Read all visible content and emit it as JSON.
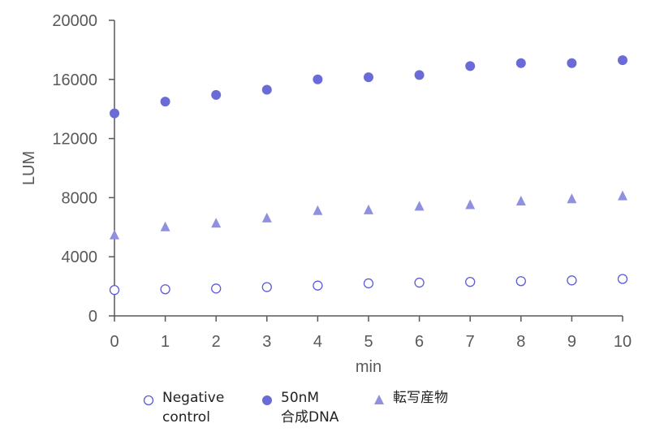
{
  "chart_data": {
    "type": "scatter",
    "title": "",
    "xlabel": "min",
    "ylabel": "LUM",
    "xlim": [
      0,
      10
    ],
    "ylim": [
      0,
      20000
    ],
    "xticks": [
      0,
      1,
      2,
      3,
      4,
      5,
      6,
      7,
      8,
      9,
      10
    ],
    "yticks": [
      0,
      4000,
      8000,
      12000,
      16000,
      20000
    ],
    "grid": false,
    "legend_position": "bottom",
    "x": [
      0,
      1,
      2,
      3,
      4,
      5,
      6,
      7,
      8,
      9,
      10
    ],
    "series": [
      {
        "name": "Negative\ncontrol",
        "marker": "open-circle",
        "color": "#5b5bd6",
        "values": [
          1750,
          1800,
          1850,
          1950,
          2050,
          2200,
          2250,
          2300,
          2350,
          2400,
          2500
        ]
      },
      {
        "name": "50nM\n合成DNA",
        "marker": "filled-circle",
        "color": "#6b6bd8",
        "values": [
          13700,
          14500,
          14950,
          15300,
          16000,
          16150,
          16300,
          16900,
          17100,
          17100,
          17300
        ]
      },
      {
        "name": "転写産物",
        "marker": "triangle",
        "color": "#9090e0",
        "values": [
          5450,
          6000,
          6250,
          6600,
          7100,
          7150,
          7400,
          7500,
          7750,
          7900,
          8100
        ]
      }
    ]
  }
}
